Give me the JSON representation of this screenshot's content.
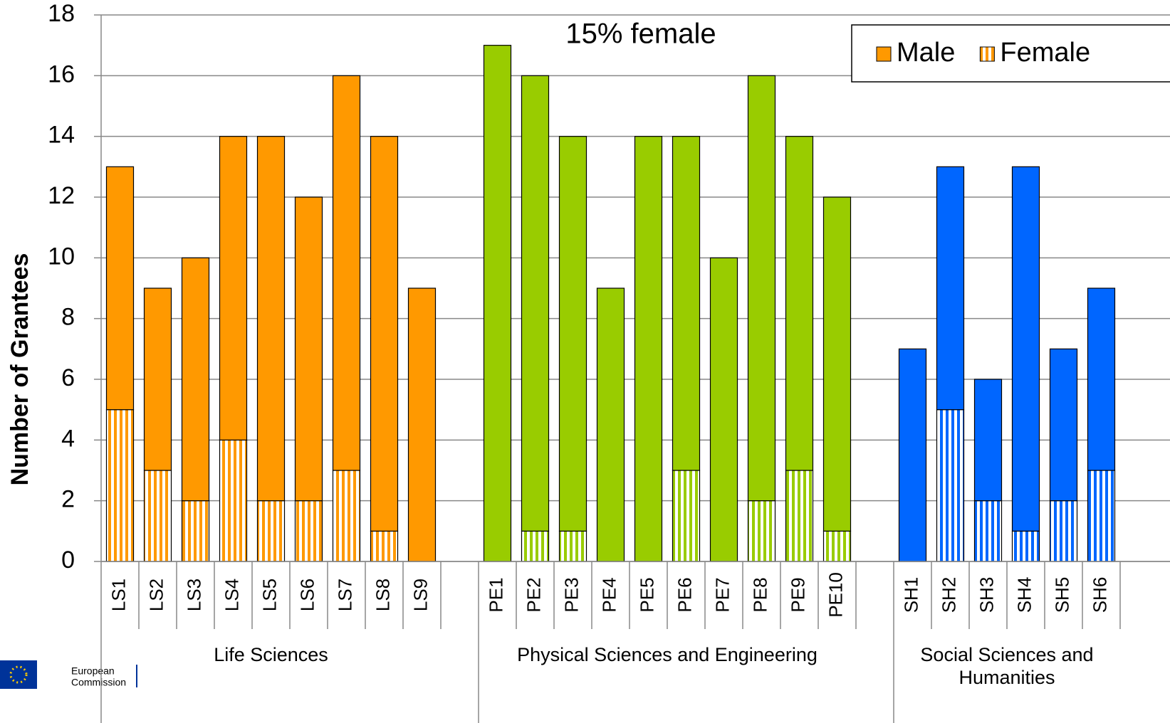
{
  "chart_data": {
    "type": "grouped_stacked_bar",
    "annotation": "15% female",
    "ylabel": "Number of Grantees",
    "ylim": [
      0,
      18
    ],
    "yticks": [
      0,
      2,
      4,
      6,
      8,
      10,
      12,
      14,
      16,
      18
    ],
    "grid": true,
    "legend": "top-right",
    "legend_color": "#ff9900",
    "series": [
      {
        "name": "Female",
        "pattern": "stripes"
      },
      {
        "name": "Male",
        "pattern": "solid"
      }
    ],
    "groups": [
      {
        "name": "Life Sciences",
        "color": "#ff9900",
        "categories": [
          "LS1",
          "LS2",
          "LS3",
          "LS4",
          "LS5",
          "LS6",
          "LS7",
          "LS8",
          "LS9"
        ],
        "values": [
          [
            5,
            3,
            2,
            4,
            2,
            2,
            3,
            1,
            0
          ],
          [
            8,
            6,
            8,
            10,
            12,
            10,
            13,
            13,
            9
          ]
        ]
      },
      {
        "name": "Physical Sciences and Engineering",
        "color": "#99cc00",
        "categories": [
          "PE1",
          "PE2",
          "PE3",
          "PE4",
          "PE5",
          "PE6",
          "PE7",
          "PE8",
          "PE9",
          "PE10"
        ],
        "values": [
          [
            0,
            1,
            1,
            0,
            0,
            3,
            0,
            2,
            3,
            1
          ],
          [
            17,
            15,
            13,
            9,
            14,
            11,
            10,
            14,
            11,
            11
          ]
        ]
      },
      {
        "name": "Social Sciences and Humanities",
        "color": "#0066ff",
        "categories": [
          "SH1",
          "SH2",
          "SH3",
          "SH4",
          "SH5",
          "SH6"
        ],
        "values": [
          [
            0,
            5,
            2,
            1,
            2,
            3
          ],
          [
            7,
            8,
            4,
            12,
            5,
            6
          ]
        ]
      }
    ]
  },
  "logo": {
    "lines": [
      "European",
      "Commission"
    ]
  }
}
